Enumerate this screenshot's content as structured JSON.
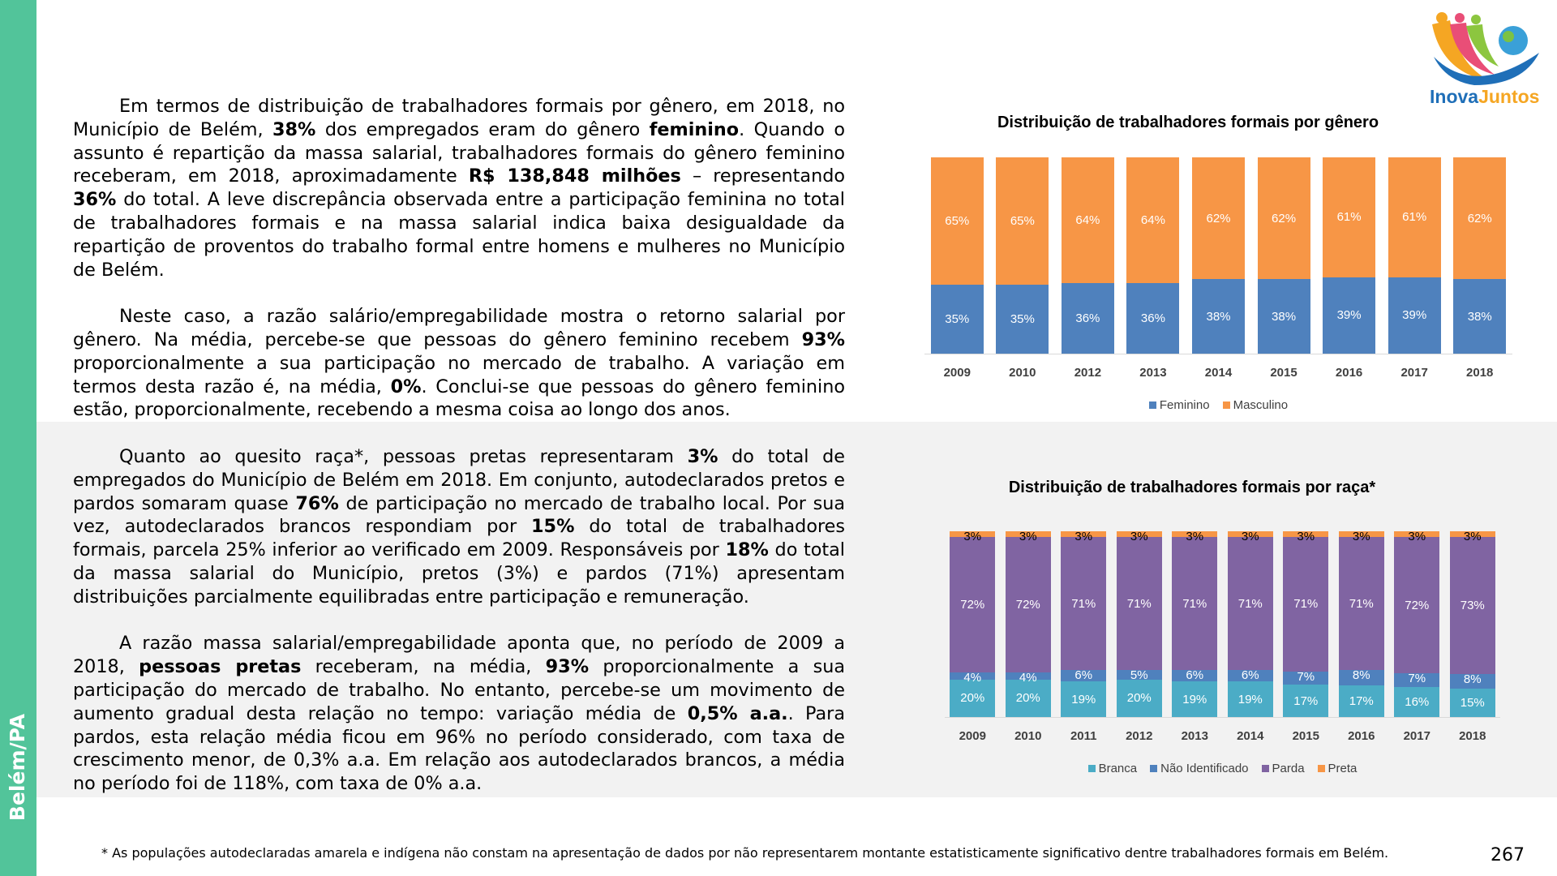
{
  "sidebar": {
    "label": "Belém/PA"
  },
  "logo": {
    "text_a": "Inova",
    "text_b": "Juntos"
  },
  "section1": {
    "paragraphs": [
      [
        {
          "t": "Em termos de distribuição de trabalhadores formais por gênero, em 2018, no Município de Belém, "
        },
        {
          "t": "38%",
          "b": true
        },
        {
          "t": " dos empregados eram do gênero "
        },
        {
          "t": "feminino",
          "b": true
        },
        {
          "t": ". Quando o assunto é repartição da massa salarial, trabalhadores formais do gênero feminino receberam, em 2018, aproximadamente "
        },
        {
          "t": "R$ 138,848 milhões",
          "b": true
        },
        {
          "t": " – representando "
        },
        {
          "t": "36%",
          "b": true
        },
        {
          "t": " do total. A leve discrepância observada entre a participação feminina no total de trabalhadores formais e na massa salarial indica baixa desigualdade da repartição de proventos do trabalho formal entre homens e mulheres no Município de Belém."
        }
      ],
      [
        {
          "t": "Neste caso, a razão salário/empregabilidade mostra o retorno salarial por gênero. Na média, percebe-se que pessoas do gênero feminino recebem "
        },
        {
          "t": "93%",
          "b": true
        },
        {
          "t": " proporcionalmente a sua participação no mercado de trabalho. A variação em termos desta razão é, na média, "
        },
        {
          "t": "0%",
          "b": true
        },
        {
          "t": ". Conclui-se que pessoas do gênero feminino estão, proporcionalmente, recebendo a mesma coisa ao longo dos anos."
        }
      ]
    ]
  },
  "section2": {
    "paragraphs": [
      [
        {
          "t": "Quanto ao quesito raça*, pessoas pretas representaram "
        },
        {
          "t": "3%",
          "b": true
        },
        {
          "t": " do total de empregados do Município de Belém em 2018. Em conjunto, autodeclarados pretos e pardos somaram quase "
        },
        {
          "t": "76%",
          "b": true
        },
        {
          "t": " de participação no mercado de trabalho local. Por sua vez, autodeclarados brancos respondiam por "
        },
        {
          "t": "15%",
          "b": true
        },
        {
          "t": " do total de trabalhadores formais, parcela 25% inferior ao verificado em 2009. Responsáveis por "
        },
        {
          "t": "18%",
          "b": true
        },
        {
          "t": " do total da massa salarial do Município, pretos (3%) e pardos (71%) apresentam distribuições parcialmente equilibradas entre participação e remuneração."
        }
      ],
      [
        {
          "t": "A razão massa salarial/empregabilidade aponta que, no período de 2009 a 2018, "
        },
        {
          "t": "pessoas pretas",
          "b": true
        },
        {
          "t": " receberam, na média, "
        },
        {
          "t": "93%",
          "b": true
        },
        {
          "t": " proporcionalmente a sua participação do mercado de trabalho. No entanto, percebe-se um movimento de aumento gradual desta relação no tempo: variação média de "
        },
        {
          "t": "0,5% a.a.",
          "b": true
        },
        {
          "t": ". Para pardos, esta relação média ficou em 96% no período considerado, com taxa de crescimento menor, de 0,3% a.a. Em relação aos autodeclarados brancos, a média no período foi de 118%, com taxa de 0% a.a."
        }
      ]
    ]
  },
  "chart_data": [
    {
      "type": "bar",
      "stacked": true,
      "title": "Distribuição de trabalhadores formais por gênero",
      "categories": [
        "2009",
        "2010",
        "2012",
        "2013",
        "2014",
        "2015",
        "2016",
        "2017",
        "2018"
      ],
      "series": [
        {
          "name": "Feminino",
          "color": "#4f81bd",
          "values": [
            35,
            35,
            36,
            36,
            38,
            38,
            39,
            39,
            38
          ]
        },
        {
          "name": "Masculino",
          "color": "#f79646",
          "values": [
            65,
            65,
            64,
            64,
            62,
            62,
            61,
            61,
            62
          ]
        }
      ],
      "legend": "bottom",
      "grid": false
    },
    {
      "type": "bar",
      "stacked": true,
      "title": "Distribuição de trabalhadores formais por raça*",
      "categories": [
        "2009",
        "2010",
        "2011",
        "2012",
        "2013",
        "2014",
        "2015",
        "2016",
        "2017",
        "2018"
      ],
      "series": [
        {
          "name": "Branca",
          "color": "#4bacc6",
          "values": [
            20,
            20,
            19,
            20,
            19,
            19,
            17,
            17,
            16,
            15
          ]
        },
        {
          "name": "Não Identificado",
          "color": "#4f81bd",
          "values": [
            4,
            4,
            6,
            5,
            6,
            6,
            7,
            8,
            7,
            8
          ]
        },
        {
          "name": "Parda",
          "color": "#8064a2",
          "values": [
            72,
            72,
            71,
            71,
            71,
            71,
            71,
            71,
            72,
            73
          ]
        },
        {
          "name": "Preta",
          "color": "#f79646",
          "values": [
            3,
            3,
            3,
            3,
            3,
            3,
            3,
            3,
            3,
            3
          ]
        }
      ],
      "legend": "bottom",
      "grid": false
    }
  ],
  "footnote": "* As populações autodeclaradas amarela e indígena não constam na apresentação de dados por não representarem montante estatisticamente significativo dentre trabalhadores formais em Belém.",
  "page_number": "267"
}
